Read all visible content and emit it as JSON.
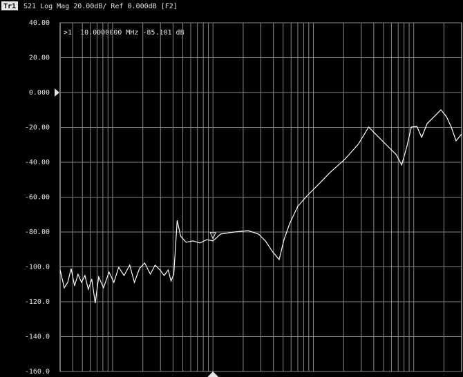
{
  "chart_data": {
    "type": "line",
    "trace_label": "Tr1",
    "title": "S21 Log Mag 20.00dB/ Ref 0.000dB [F2]",
    "annotation": ">1  10.0000000 MHz -85.101 dB",
    "color": "#ffffff",
    "log_x": true,
    "grid": true,
    "xlim": [
      0.3,
      3000
    ],
    "xticks": [
      0.4,
      0.5,
      0.6,
      0.7,
      0.8,
      0.9,
      1,
      2,
      3,
      4,
      5,
      6,
      7,
      8,
      9,
      10,
      20,
      30,
      40,
      50,
      60,
      70,
      80,
      90,
      100,
      200,
      300,
      400,
      500,
      600,
      700,
      800,
      900,
      1000,
      2000
    ],
    "ylim": [
      -160,
      40
    ],
    "yticks": [
      {
        "value": 40,
        "label": "40.00"
      },
      {
        "value": 20,
        "label": "20.00"
      },
      {
        "value": 0,
        "label": "0.000"
      },
      {
        "value": -20,
        "label": "-20.00"
      },
      {
        "value": -40,
        "label": "-40.00"
      },
      {
        "value": -60,
        "label": "-60.00"
      },
      {
        "value": -80,
        "label": "-80.00"
      },
      {
        "value": -100,
        "label": "-100.0"
      },
      {
        "value": -120,
        "label": "-120.0"
      },
      {
        "value": -140,
        "label": "-140.0"
      },
      {
        "value": -160,
        "label": "-160.0"
      }
    ],
    "x": [
      0.3,
      0.33,
      0.357,
      0.386,
      0.418,
      0.452,
      0.49,
      0.53,
      0.573,
      0.62,
      0.671,
      0.727,
      0.812,
      0.921,
      1.03,
      1.15,
      1.3,
      1.48,
      1.65,
      1.85,
      2.09,
      2.38,
      2.65,
      2.97,
      3.26,
      3.58,
      3.82,
      4.07,
      4.4,
      4.76,
      5.41,
      6.32,
      7.41,
      8.68,
      10,
      11.9,
      16.3,
      22.4,
      28.4,
      33.3,
      38.9,
      45.6,
      51,
      58,
      70,
      86,
      109,
      149,
      205,
      280,
      356,
      416,
      527,
      669,
      759,
      848,
      947,
      1074,
      1200,
      1362,
      1595,
      1868,
      2119,
      2366,
      2643,
      3000
    ],
    "values": [
      -101.8,
      -112,
      -108.9,
      -101,
      -110.9,
      -104.2,
      -108.9,
      -105,
      -112.9,
      -106.9,
      -120.8,
      -105.7,
      -112,
      -103,
      -108.9,
      -100.2,
      -105,
      -99,
      -108.9,
      -101,
      -97.8,
      -104.2,
      -99,
      -101.8,
      -105,
      -101.8,
      -108.1,
      -104.2,
      -73.3,
      -82.4,
      -85.9,
      -85.1,
      -86.3,
      -84.4,
      -85.1,
      -81.2,
      -80,
      -79.2,
      -81.2,
      -85.1,
      -91,
      -95.8,
      -84.4,
      -75.2,
      -65.3,
      -59.4,
      -53.5,
      -45.5,
      -38.4,
      -29.7,
      -19.8,
      -23.8,
      -29.7,
      -35.6,
      -41.6,
      -31.7,
      -19.8,
      -19.4,
      -25.7,
      -17.8,
      -13.9,
      -9.9,
      -13.9,
      -19.8,
      -27.7,
      -23.8
    ]
  }
}
